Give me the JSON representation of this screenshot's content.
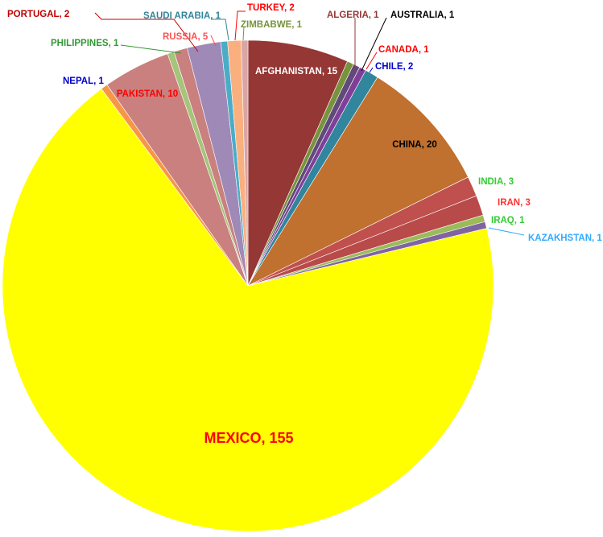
{
  "chart_data": {
    "type": "pie",
    "title": "",
    "slices": [
      {
        "category": "AFGHANISTAN",
        "value": 15,
        "label": "AFGHANISTAN, 15",
        "color": "#953735",
        "label_color": "#ffffff"
      },
      {
        "category": "ALGERIA",
        "value": 1,
        "label": "ALGERIA, 1",
        "color": "#77933c",
        "label_color": "#953735"
      },
      {
        "category": "AUSTRALIA",
        "value": 1,
        "label": "AUSTRALIA, 1",
        "color": "#604a7b",
        "label_color": "#000000"
      },
      {
        "category": "CANADA",
        "value": 1,
        "label": "CANADA, 1",
        "color": "#7f3f98",
        "label_color": "#ff0000"
      },
      {
        "category": "CHILE",
        "value": 2,
        "label": "CHILE, 2",
        "color": "#31859c",
        "label_color": "#0000cc"
      },
      {
        "category": "CHINA",
        "value": 20,
        "label": "CHINA, 20",
        "color": "#c0702f",
        "label_color": "#000000"
      },
      {
        "category": "INDIA",
        "value": 3,
        "label": "INDIA, 3",
        "color": "#c0504d",
        "label_color": "#33cc33"
      },
      {
        "category": "IRAN",
        "value": 3,
        "label": "IRAN, 3",
        "color": "#b84a4a",
        "label_color": "#ff3333"
      },
      {
        "category": "IRAQ",
        "value": 1,
        "label": "IRAQ, 1",
        "color": "#9bbb59",
        "label_color": "#33cc33"
      },
      {
        "category": "KAZAKHSTAN",
        "value": 1,
        "label": "KAZAKHSTAN, 1",
        "color": "#8064a2",
        "label_color": "#33aaff"
      },
      {
        "category": "MEXICO",
        "value": 155,
        "label": "MEXICO, 155",
        "color": "#ffff00",
        "label_color": "#ff0000"
      },
      {
        "category": "NEPAL",
        "value": 1,
        "label": "NEPAL, 1",
        "color": "#f79646",
        "label_color": "#0000cc"
      },
      {
        "category": "PAKISTAN",
        "value": 10,
        "label": "PAKISTAN, 10",
        "color": "#c9807f",
        "label_color": "#ff0000"
      },
      {
        "category": "PHILIPPINES",
        "value": 1,
        "label": "PHILIPPINES, 1",
        "color": "#a6c47a",
        "label_color": "#339933"
      },
      {
        "category": "PORTUGAL",
        "value": 2,
        "label": "PORTUGAL, 2",
        "color": "#c9807f",
        "label_color": "#c00000"
      },
      {
        "category": "RUSSIA",
        "value": 5,
        "label": "RUSSIA, 5",
        "color": "#9f89b7",
        "label_color": "#ff5050"
      },
      {
        "category": "SAUDI ARABIA",
        "value": 1,
        "label": "SAUDI ARABIA, 1",
        "color": "#4bacc6",
        "label_color": "#31859c"
      },
      {
        "category": "TURKEY",
        "value": 2,
        "label": "TURKEY, 2",
        "color": "#fab07e",
        "label_color": "#ff0000"
      },
      {
        "category": "ZIMBABWE",
        "value": 1,
        "label": "ZIMBABWE, 1",
        "color": "#d9a6a5",
        "label_color": "#77933c"
      }
    ]
  }
}
